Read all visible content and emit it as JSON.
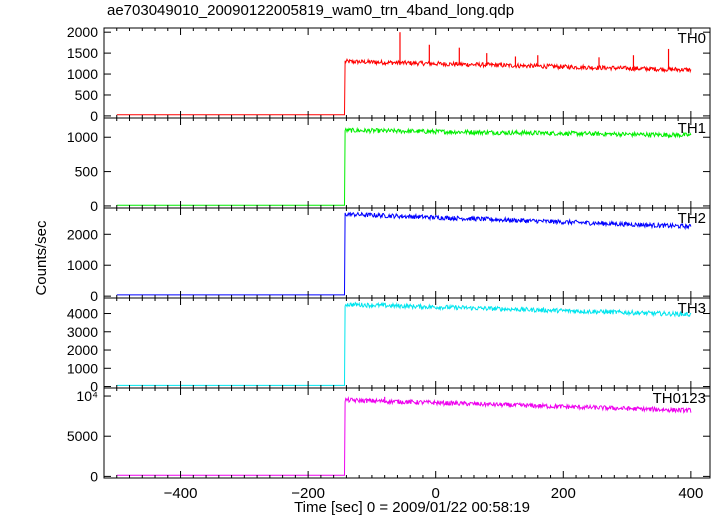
{
  "title": "ae703049010_20090122005819_wam0_trn_4band_long.qdp",
  "chart_data": {
    "type": "line",
    "title": "ae703049010_20090122005819_wam0_trn_4band_long.qdp",
    "xlabel": "Time [sec] 0 = 2009/01/22 00:58:19",
    "ylabel": "Counts/sec",
    "xlim": [
      -520,
      430
    ],
    "x_ticks": [
      -400,
      -200,
      0,
      200,
      400
    ],
    "x_tick_labels": [
      "−400",
      "−200",
      "0",
      "200",
      "400"
    ],
    "trigger_time": -142,
    "x_end": 400,
    "panels": [
      {
        "name": "TH0",
        "color": "#ff0000",
        "ylim": [
          -50,
          2100
        ],
        "y_ticks": [
          0,
          500,
          1000,
          1500,
          2000
        ],
        "y_tick_labels": [
          "0",
          "500",
          "1000",
          "1500",
          "2000"
        ],
        "pre_level": 30,
        "peak": 1300,
        "end_level": 1100,
        "spikes": [
          [
            -56,
            2000
          ],
          [
            -10,
            1700
          ],
          [
            37,
            1630
          ],
          [
            80,
            1500
          ],
          [
            125,
            1420
          ],
          [
            160,
            1450
          ],
          [
            256,
            1400
          ],
          [
            310,
            1450
          ],
          [
            365,
            1600
          ]
        ]
      },
      {
        "name": "TH1",
        "color": "#00ee00",
        "ylim": [
          -30,
          1280
        ],
        "y_ticks": [
          0,
          500,
          1000
        ],
        "y_tick_labels": [
          "0",
          "500",
          "1000"
        ],
        "pre_level": 10,
        "peak": 1100,
        "end_level": 1030,
        "spikes": []
      },
      {
        "name": "TH2",
        "color": "#0000ff",
        "ylim": [
          -60,
          2850
        ],
        "y_ticks": [
          0,
          1000,
          2000
        ],
        "y_tick_labels": [
          "0",
          "1000",
          "2000"
        ],
        "pre_level": 40,
        "peak": 2650,
        "end_level": 2250,
        "spikes": []
      },
      {
        "name": "TH3",
        "color": "#00e5ee",
        "ylim": [
          -80,
          4850
        ],
        "y_ticks": [
          0,
          1000,
          2000,
          3000,
          4000
        ],
        "y_tick_labels": [
          "0",
          "1000",
          "2000",
          "3000",
          "4000"
        ],
        "pre_level": 60,
        "peak": 4500,
        "end_level": 3950,
        "spikes": []
      },
      {
        "name": "TH0123",
        "color": "#ee00ee",
        "ylim": [
          -200,
          11000
        ],
        "y_ticks": [
          0,
          5000,
          10000
        ],
        "y_tick_labels": [
          "0",
          "5000",
          "10⁴"
        ],
        "pre_level": 150,
        "peak": 9500,
        "end_level": 8200,
        "spikes": [
          [
            -80,
            9900
          ]
        ]
      }
    ]
  }
}
